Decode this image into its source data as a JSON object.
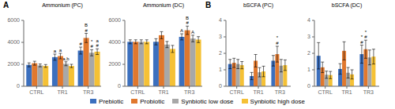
{
  "chart_data": [
    {
      "type": "bar",
      "title": "Ammonium (PC)",
      "panel": "A",
      "categories": [
        "CTRL",
        "TR1",
        "TR3"
      ],
      "ylim": [
        0,
        6000
      ],
      "yticks": [
        0,
        2000,
        4000,
        6000
      ],
      "series": [
        {
          "name": "Prebiotic",
          "color": "#3b6fbe",
          "values": [
            1950,
            2650,
            3250
          ],
          "errors": [
            180,
            280,
            320
          ],
          "annotations": [
            null,
            "a",
            "#"
          ]
        },
        {
          "name": "Probiotic",
          "color": "#e0782e",
          "values": [
            2100,
            2750,
            4400
          ],
          "errors": [
            180,
            250,
            420
          ],
          "annotations": [
            null,
            "a",
            "B\n#"
          ]
        },
        {
          "name": "Synbiotic low dose",
          "color": "#a8a8a8",
          "values": [
            1900,
            2050,
            3050
          ],
          "errors": [
            130,
            180,
            280
          ],
          "annotations": [
            null,
            "a,b",
            "*\n#"
          ]
        },
        {
          "name": "Synbiotic high dose",
          "color": "#f5c135",
          "values": [
            1850,
            1850,
            3150
          ],
          "errors": [
            130,
            150,
            260
          ],
          "annotations": [
            null,
            null,
            "a\n#"
          ]
        }
      ]
    },
    {
      "type": "bar",
      "title": "Ammonium (DC)",
      "categories": [
        "CTRL",
        "TR1",
        "TR3"
      ],
      "ylim": [
        0,
        6000
      ],
      "yticks": [
        0,
        2000,
        4000,
        6000
      ],
      "series": [
        {
          "name": "Prebiotic",
          "color": "#3b6fbe",
          "values": [
            4050,
            4050,
            4500
          ],
          "errors": [
            180,
            280,
            280
          ],
          "annotations": [
            null,
            null,
            "A"
          ]
        },
        {
          "name": "Probiotic",
          "color": "#e0782e",
          "values": [
            4050,
            4650,
            5100
          ],
          "errors": [
            180,
            320,
            380
          ],
          "annotations": [
            null,
            null,
            "B\n#"
          ]
        },
        {
          "name": "Synbiotic low dose",
          "color": "#a8a8a8",
          "values": [
            4050,
            3800,
            4350
          ],
          "errors": [
            180,
            280,
            300
          ],
          "annotations": [
            null,
            null,
            "A"
          ]
        },
        {
          "name": "Synbiotic high dose",
          "color": "#f5c135",
          "values": [
            4050,
            3400,
            4250
          ],
          "errors": [
            180,
            320,
            270
          ]
        }
      ]
    },
    {
      "type": "bar",
      "title": "bSCFA (PC)",
      "panel": "B",
      "categories": [
        "CTRL",
        "TR1",
        "TR3"
      ],
      "ylim": [
        0,
        4
      ],
      "yticks": [
        0,
        1,
        2,
        3,
        4
      ],
      "series": [
        {
          "name": "Prebiotic",
          "color": "#3b6fbe",
          "values": [
            1.35,
            0.62,
            1.55
          ],
          "errors": [
            0.28,
            0.22,
            0.32
          ]
        },
        {
          "name": "Probiotic",
          "color": "#e0782e",
          "values": [
            1.42,
            1.55,
            1.95
          ],
          "errors": [
            0.28,
            0.38,
            0.48
          ],
          "annotations": [
            null,
            null,
            "*\n#"
          ]
        },
        {
          "name": "Synbiotic low dose",
          "color": "#a8a8a8",
          "values": [
            1.35,
            0.85,
            1.25
          ],
          "errors": [
            0.28,
            0.28,
            0.38
          ]
        },
        {
          "name": "Synbiotic high dose",
          "color": "#f5c135",
          "values": [
            1.28,
            0.9,
            1.28
          ],
          "errors": [
            0.22,
            0.32,
            0.32
          ]
        }
      ]
    },
    {
      "type": "bar",
      "title": "bSCFA (DC)",
      "categories": [
        "CTRL",
        "TR1",
        "TR3"
      ],
      "ylim": [
        0,
        4
      ],
      "yticks": [
        0,
        1,
        2,
        3,
        4
      ],
      "series": [
        {
          "name": "Prebiotic",
          "color": "#3b6fbe",
          "values": [
            1.85,
            1.05,
            1.95
          ],
          "errors": [
            0.8,
            0.32,
            0.55
          ],
          "annotations": [
            null,
            null,
            "*\n#"
          ]
        },
        {
          "name": "Probiotic",
          "color": "#e0782e",
          "values": [
            1.15,
            2.15,
            2.25
          ],
          "errors": [
            0.32,
            0.55,
            0.55
          ],
          "annotations": [
            null,
            null,
            "*\n#"
          ]
        },
        {
          "name": "Synbiotic low dose",
          "color": "#a8a8a8",
          "values": [
            0.7,
            0.82,
            1.75
          ],
          "errors": [
            0.22,
            0.32,
            0.45
          ]
        },
        {
          "name": "Synbiotic high dose",
          "color": "#f5c135",
          "values": [
            0.68,
            0.72,
            1.8
          ],
          "errors": [
            0.22,
            0.28,
            0.45
          ]
        }
      ]
    }
  ],
  "legend": "bottom"
}
